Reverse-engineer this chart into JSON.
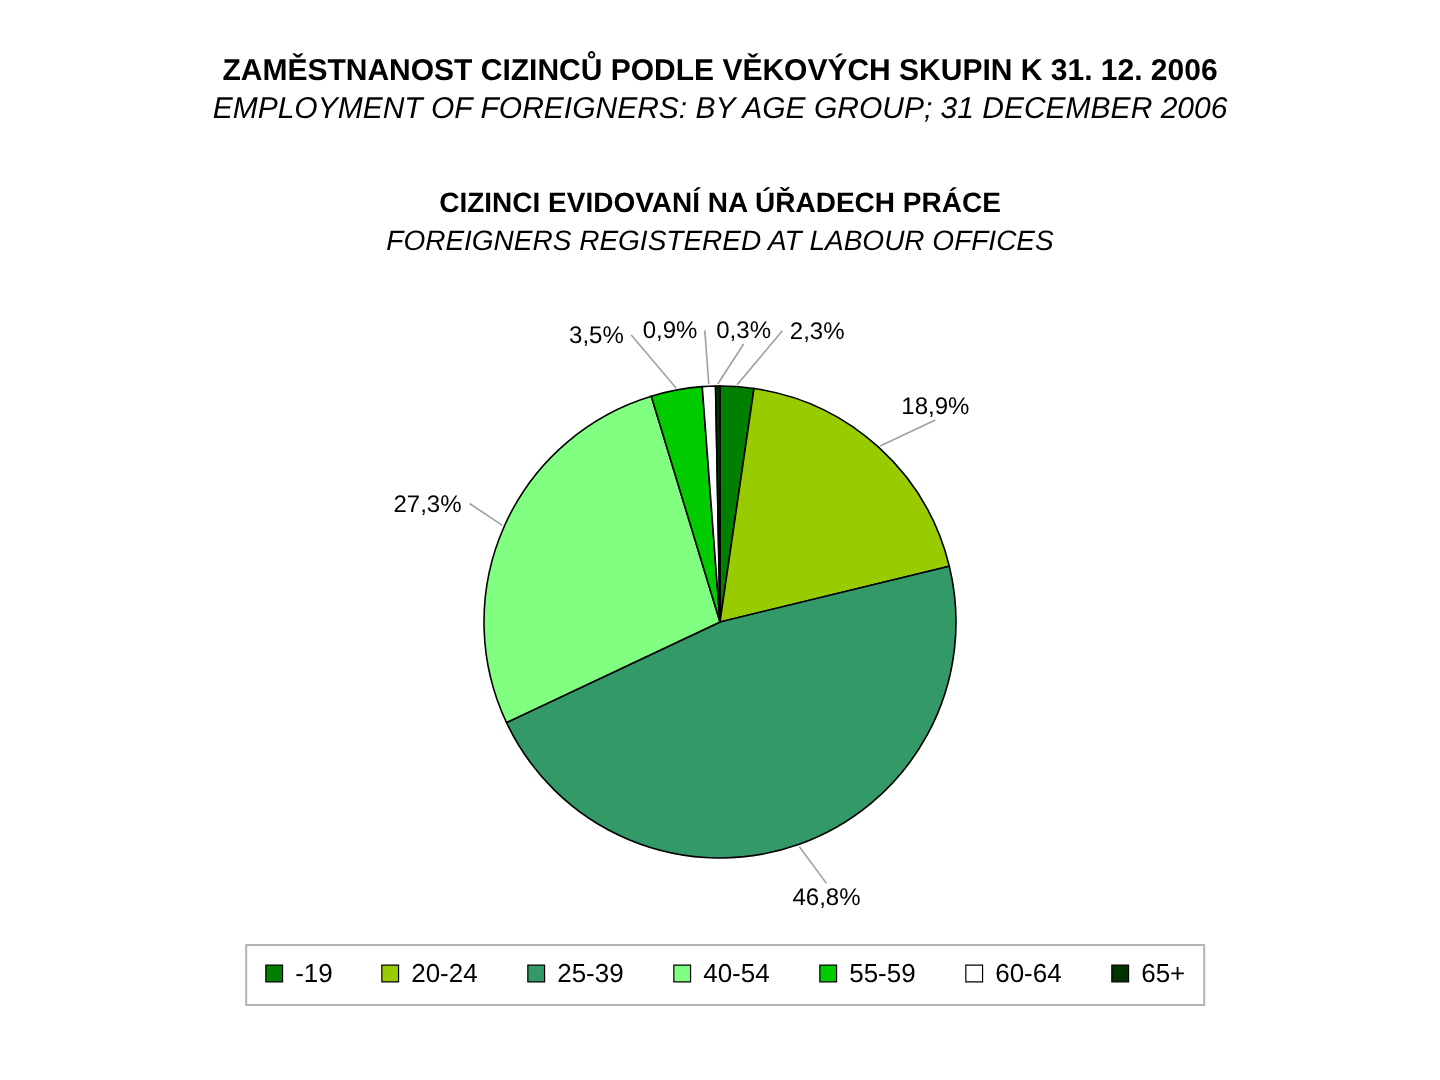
{
  "chart_data": {
    "type": "pie",
    "title": "ZAMĚSTNANOST CIZINCŮ PODLE VĚKOVÝCH SKUPIN K 31. 12. 2006",
    "subtitle": "EMPLOYMENT OF FOREIGNERS: BY AGE GROUP; 31 DECEMBER 2006",
    "annotations": [
      "CIZINCI EVIDOVANÍ NA ÚŘADECH PRÁCE",
      "FOREIGNERS REGISTERED AT LABOUR OFFICES"
    ],
    "categories": [
      "-19",
      "20-24",
      "25-39",
      "40-54",
      "55-59",
      "60-64",
      "65+"
    ],
    "values": [
      2.3,
      18.9,
      46.8,
      27.3,
      3.5,
      0.9,
      0.3
    ],
    "colors": [
      "#007f00",
      "#99cc00",
      "#339966",
      "#80ff80",
      "#00cc00",
      "#ffffff",
      "#003300"
    ],
    "value_labels": [
      "2,3%",
      "18,9%",
      "46,8%",
      "27,3%",
      "3,5%",
      "0,9%",
      "0,3%"
    ],
    "legend": "bottom"
  }
}
